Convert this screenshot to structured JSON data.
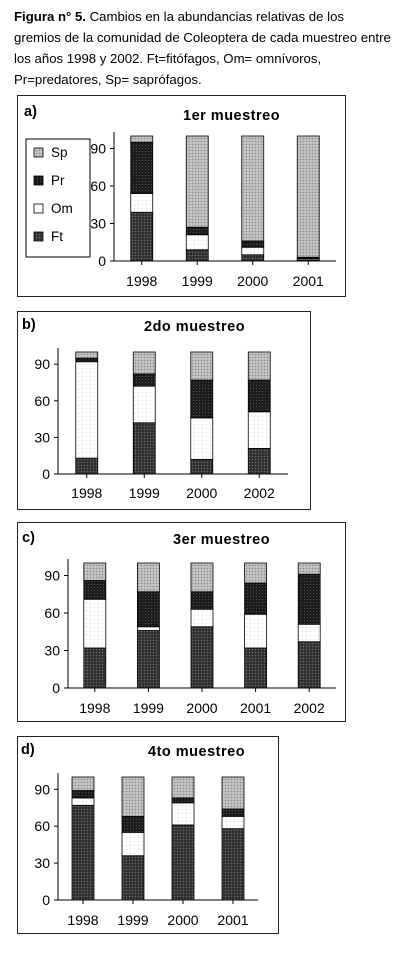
{
  "caption": {
    "bold": "Figura n° 5.",
    "text": " Cambios en la abundancias relativas de los gremios de la comunidad de Coleoptera de cada  muestreo entre los años 1998 y 2002. Ft=fitófagos, Om= omnívoros, Pr=predatores, Sp= saprófagos."
  },
  "legend": [
    "Sp",
    "Pr",
    "Om",
    "Ft"
  ],
  "colors": {
    "Ft": "#3a3a3a",
    "Om": "#ffffff",
    "Pr": "#1c1c1c",
    "Sp": "#b8b8b8"
  },
  "chart_data": [
    {
      "type": "bar",
      "stacked": true,
      "panel": "a)",
      "title": "1er muestreo",
      "categories": [
        "1998",
        "1999",
        "2000",
        "2001"
      ],
      "series": [
        {
          "name": "Ft",
          "values": [
            39,
            9,
            5,
            1
          ]
        },
        {
          "name": "Om",
          "values": [
            15,
            12,
            6,
            1
          ]
        },
        {
          "name": "Pr",
          "values": [
            41,
            6,
            5,
            1
          ]
        },
        {
          "name": "Sp",
          "values": [
            5,
            73,
            84,
            97
          ]
        }
      ],
      "ylim": [
        0,
        100
      ],
      "yticks": [
        0,
        30,
        60,
        90
      ],
      "legend_position": "left"
    },
    {
      "type": "bar",
      "stacked": true,
      "panel": "b)",
      "title": "2do muestreo",
      "categories": [
        "1998",
        "1999",
        "2000",
        "2002"
      ],
      "series": [
        {
          "name": "Ft",
          "values": [
            13,
            42,
            12,
            21
          ]
        },
        {
          "name": "Om",
          "values": [
            79,
            30,
            34,
            30
          ]
        },
        {
          "name": "Pr",
          "values": [
            3,
            10,
            31,
            26
          ]
        },
        {
          "name": "Sp",
          "values": [
            5,
            18,
            23,
            23
          ]
        }
      ],
      "ylim": [
        0,
        100
      ],
      "yticks": [
        0,
        30,
        60,
        90
      ]
    },
    {
      "type": "bar",
      "stacked": true,
      "panel": "c)",
      "title": "3er muestreo",
      "categories": [
        "1998",
        "1999",
        "2000",
        "2001",
        "2002"
      ],
      "series": [
        {
          "name": "Ft",
          "values": [
            32,
            46,
            49,
            32,
            37
          ]
        },
        {
          "name": "Om",
          "values": [
            39,
            3,
            14,
            27,
            14
          ]
        },
        {
          "name": "Pr",
          "values": [
            15,
            28,
            14,
            25,
            40
          ]
        },
        {
          "name": "Sp",
          "values": [
            14,
            23,
            23,
            16,
            9
          ]
        }
      ],
      "ylim": [
        0,
        100
      ],
      "yticks": [
        0,
        30,
        60,
        90
      ]
    },
    {
      "type": "bar",
      "stacked": true,
      "panel": "d)",
      "title": "4to muestreo",
      "categories": [
        "1998",
        "1999",
        "2000",
        "2001"
      ],
      "series": [
        {
          "name": "Ft",
          "values": [
            77,
            36,
            61,
            58
          ]
        },
        {
          "name": "Om",
          "values": [
            6,
            19,
            18,
            10
          ]
        },
        {
          "name": "Pr",
          "values": [
            6,
            13,
            4,
            6
          ]
        },
        {
          "name": "Sp",
          "values": [
            11,
            32,
            17,
            26
          ]
        }
      ],
      "ylim": [
        0,
        100
      ],
      "yticks": [
        0,
        30,
        60,
        90
      ]
    }
  ]
}
